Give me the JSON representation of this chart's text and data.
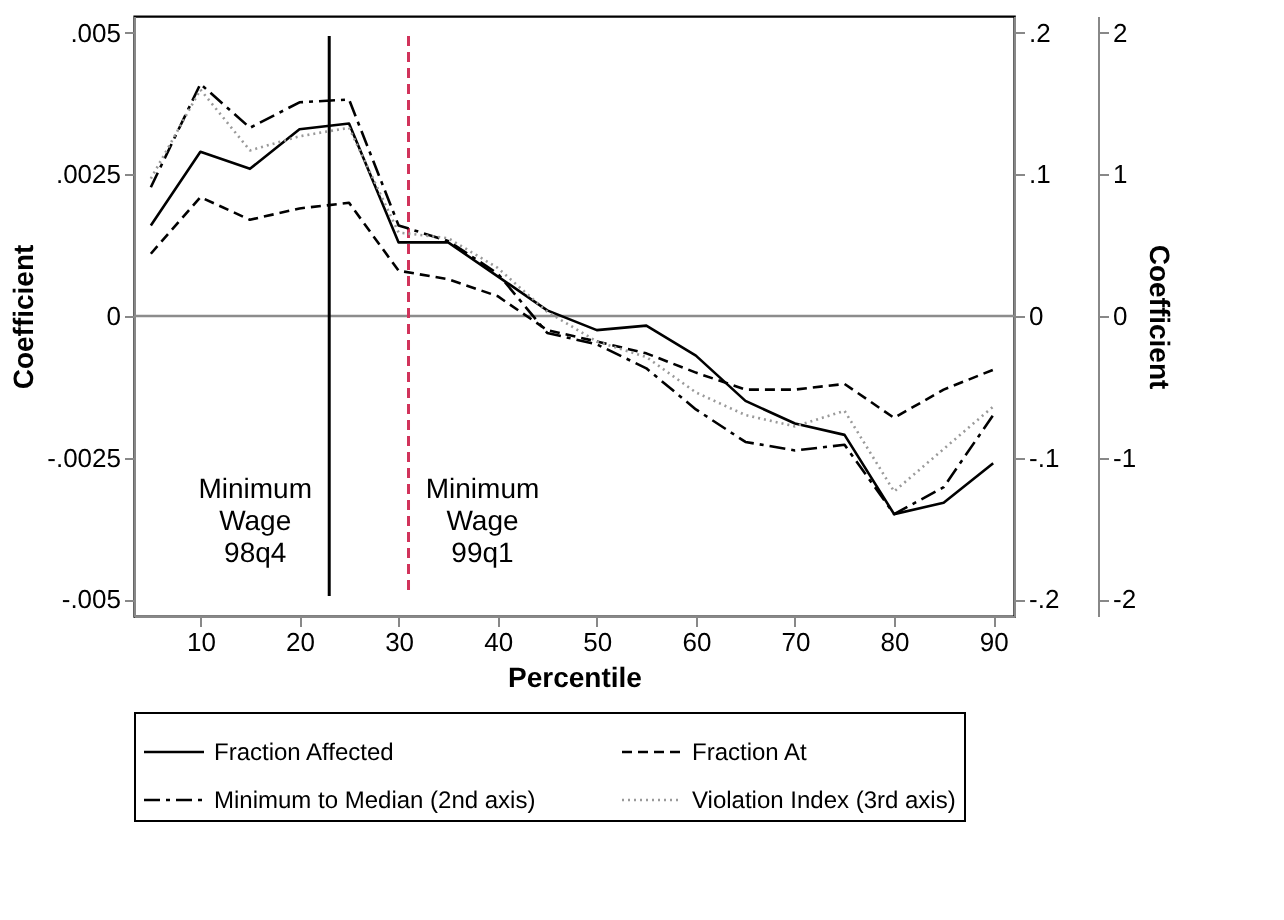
{
  "chart_data": {
    "type": "line",
    "xlabel": "Percentile",
    "ylabel": "Coefficient",
    "y3label": "Coefficient",
    "x": [
      5,
      10,
      15,
      20,
      25,
      30,
      35,
      40,
      45,
      50,
      55,
      60,
      65,
      70,
      75,
      80,
      85,
      90
    ],
    "series": [
      {
        "name": "Fraction Affected",
        "color": "#000000",
        "line_style": "solid",
        "axis": "y",
        "values": [
          0.0016,
          0.0029,
          0.0026,
          0.0033,
          0.0034,
          0.0013,
          0.0013,
          0.0007,
          0.0001,
          -0.00025,
          -0.00017,
          -0.0007,
          -0.0015,
          -0.0019,
          -0.0021,
          -0.0035,
          -0.0033,
          -0.0026
        ]
      },
      {
        "name": "Fraction At",
        "color": "#000000",
        "line_style": "dashed",
        "axis": "y",
        "values": [
          0.0011,
          0.0021,
          0.0017,
          0.0019,
          0.002,
          0.0008,
          0.00065,
          0.00035,
          -0.00025,
          -0.00045,
          -0.00066,
          -0.001,
          -0.0013,
          -0.0013,
          -0.0012,
          -0.0018,
          -0.0013,
          -0.00095
        ]
      },
      {
        "name": "Minimum to Median (2nd axis)",
        "color": "#000000",
        "line_style": "dashdot",
        "axis": "y2",
        "values": [
          0.091,
          0.164,
          0.133,
          0.151,
          0.153,
          0.064,
          0.053,
          0.03,
          -0.012,
          -0.02,
          -0.037,
          -0.066,
          -0.089,
          -0.095,
          -0.091,
          -0.14,
          -0.121,
          -0.07
        ]
      },
      {
        "name": "Violation Index (3rd axis)",
        "color": "#9a9a9a",
        "line_style": "dotted",
        "axis": "y3",
        "values": [
          0.97,
          1.6,
          1.17,
          1.27,
          1.33,
          0.59,
          0.55,
          0.34,
          0.03,
          -0.18,
          -0.29,
          -0.54,
          -0.7,
          -0.78,
          -0.67,
          -1.24,
          -0.94,
          -0.64
        ]
      }
    ],
    "xlim": [
      3.3,
      92.1
    ],
    "xticks": [
      10,
      20,
      30,
      40,
      50,
      60,
      70,
      80,
      90
    ],
    "ylim": [
      -0.0053,
      0.0053
    ],
    "yticks": [
      {
        "value": -0.005,
        "label": "-.005"
      },
      {
        "value": -0.0025,
        "label": "-.0025"
      },
      0,
      {
        "value": 0.0025,
        "label": ".0025"
      },
      {
        "value": 0.005,
        "label": ".005"
      }
    ],
    "y2lim": [
      -0.212,
      0.212
    ],
    "y2ticks": [
      {
        "value": -0.2,
        "label": "-.2"
      },
      {
        "value": -0.1,
        "label": "-.1"
      },
      0,
      {
        "value": 0.1,
        "label": ".1"
      },
      {
        "value": 0.2,
        "label": ".2"
      }
    ],
    "y3lim": [
      -2.12,
      2.12
    ],
    "y3ticks": [
      -2,
      -1,
      0,
      1,
      2
    ],
    "ref_lines": [
      {
        "axis": "y",
        "value": 0,
        "color": "#8c8c8c",
        "line_style": "solid"
      },
      {
        "axis": "x",
        "value": 23,
        "label": "Minimum\nWage\n98q4",
        "color": "#000000",
        "line_style": "solid"
      },
      {
        "axis": "x",
        "value": 31,
        "label": "Minimum\nWage\n99q1",
        "color": "#d1335b",
        "line_style": "dashed"
      }
    ],
    "legend": "bottom"
  }
}
